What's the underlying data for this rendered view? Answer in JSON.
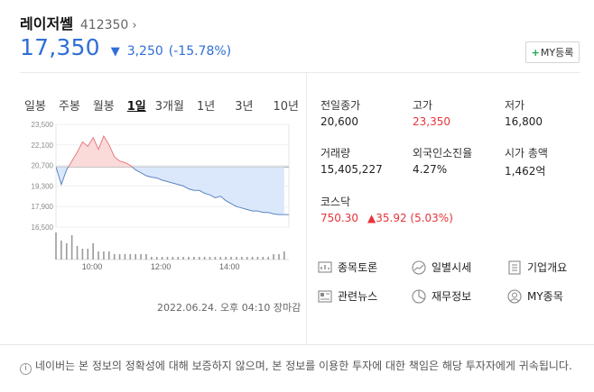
{
  "stock": {
    "name": "레이저쎌",
    "code": "412350",
    "price": "17,350",
    "change": "3,250",
    "change_pct": "(-15.78%)"
  },
  "my_button": {
    "plus": "+",
    "label": "MY등록"
  },
  "tabs": [
    "일봉",
    "주봉",
    "월봉",
    "1일",
    "3개월",
    "1년",
    "3년",
    "10년"
  ],
  "active_tab": "1일",
  "chart_data": {
    "type": "area",
    "yticks": [
      "23,500",
      "22,100",
      "20,700",
      "19,300",
      "17,900",
      "16,500"
    ],
    "xticks": [
      "10:00",
      "12:00",
      "14:00"
    ],
    "reference_price": 20600,
    "ylim": [
      16500,
      23500
    ],
    "price_series": [
      20600,
      19400,
      20400,
      21000,
      21600,
      22300,
      22000,
      22600,
      21800,
      22700,
      22100,
      21300,
      21000,
      20900,
      20700,
      20400,
      20200,
      20000,
      19900,
      19850,
      19700,
      19600,
      19500,
      19400,
      19300,
      19100,
      19000,
      19000,
      18800,
      18700,
      18500,
      18600,
      18300,
      18100,
      17900,
      17800,
      17700,
      17600,
      17600,
      17500,
      17500,
      17400,
      17350,
      17350
    ],
    "volume_series": [
      10,
      7,
      6,
      9,
      5,
      4,
      4,
      6,
      3,
      3,
      3,
      2,
      2,
      2,
      2,
      2,
      2,
      2,
      1,
      1,
      1,
      1,
      1,
      1,
      1,
      1,
      1,
      1,
      1,
      1,
      1,
      1,
      1,
      1,
      1,
      1,
      1,
      1,
      1,
      1,
      1,
      2,
      2,
      3
    ]
  },
  "timestamp": "2022.06.24. 오후 04:10 장마감",
  "info": {
    "prev_close_label": "전일종가",
    "prev_close": "20,600",
    "high_label": "고가",
    "high": "23,350",
    "low_label": "저가",
    "low": "16,800",
    "volume_label": "거래량",
    "volume": "15,405,227",
    "foreign_label": "외국인소진율",
    "foreign": "4.27%",
    "market_cap_label": "시가 총액",
    "market_cap": "1,462억",
    "index_label": "코스닥",
    "index_value": "750.30",
    "index_change": "▲35.92 (5.03%)"
  },
  "links": {
    "discussion": "종목토론",
    "daily_price": "일별시세",
    "company": "기업개요",
    "news": "관련뉴스",
    "financial": "재무정보",
    "my_stocks": "MY종목"
  },
  "disclaimer": "네이버는 본 정보의 정확성에 대해 보증하지 않으며, 본 정보를 이용한 투자에 대한 책임은 해당 투자자에게 귀속됩니다.",
  "colors": {
    "down": "#2f6fd5",
    "up": "#e6343b",
    "add_plus": "#1aa94a"
  }
}
